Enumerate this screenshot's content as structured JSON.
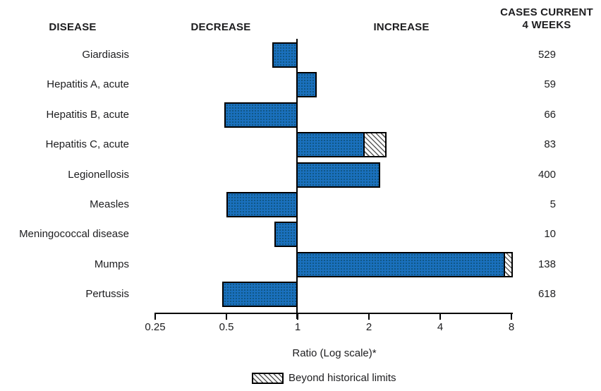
{
  "headers": {
    "disease": "DISEASE",
    "decrease": "DECREASE",
    "increase": "INCREASE",
    "cases_line1": "CASES CURRENT",
    "cases_line2": "4 WEEKS"
  },
  "axis": {
    "label": "Ratio (Log scale)*",
    "tick_labels": [
      "0.25",
      "0.5",
      "1",
      "2",
      "4",
      "8"
    ]
  },
  "legend": {
    "beyond": "Beyond historical limits"
  },
  "colors": {
    "bar_fill": "#1a70bd",
    "bar_border": "#000000",
    "text": "#1d1d1f"
  },
  "chart_data": {
    "type": "bar",
    "orientation": "horizontal",
    "scale": "log2",
    "baseline_ratio": 1,
    "xlabel": "Ratio (Log scale)*",
    "x_ticks": [
      0.25,
      0.5,
      1,
      2,
      4,
      8
    ],
    "xlim": [
      0.25,
      8
    ],
    "columns": [
      "DISEASE",
      "RATIO",
      "CASES CURRENT 4 WEEKS"
    ],
    "rows": [
      {
        "disease": "Giardiasis",
        "cases": 529,
        "ratio": 0.78,
        "direction": "decrease",
        "beyond_historical_limits": false,
        "beyond_start_ratio": null
      },
      {
        "disease": "Hepatitis A, acute",
        "cases": 59,
        "ratio": 1.2,
        "direction": "increase",
        "beyond_historical_limits": false,
        "beyond_start_ratio": null
      },
      {
        "disease": "Hepatitis B, acute",
        "cases": 66,
        "ratio": 0.49,
        "direction": "decrease",
        "beyond_historical_limits": false,
        "beyond_start_ratio": null
      },
      {
        "disease": "Hepatitis C, acute",
        "cases": 83,
        "ratio": 2.38,
        "direction": "increase",
        "beyond_historical_limits": true,
        "beyond_start_ratio": 1.92
      },
      {
        "disease": "Legionellosis",
        "cases": 400,
        "ratio": 2.23,
        "direction": "increase",
        "beyond_historical_limits": false,
        "beyond_start_ratio": null
      },
      {
        "disease": "Measles",
        "cases": 5,
        "ratio": 0.5,
        "direction": "decrease",
        "beyond_historical_limits": false,
        "beyond_start_ratio": null
      },
      {
        "disease": "Meningococcal disease",
        "cases": 10,
        "ratio": 0.8,
        "direction": "decrease",
        "beyond_historical_limits": false,
        "beyond_start_ratio": null
      },
      {
        "disease": "Mumps",
        "cases": 138,
        "ratio": 8.1,
        "direction": "increase",
        "beyond_historical_limits": true,
        "beyond_start_ratio": 7.5
      },
      {
        "disease": "Pertussis",
        "cases": 618,
        "ratio": 0.48,
        "direction": "decrease",
        "beyond_historical_limits": false,
        "beyond_start_ratio": null
      }
    ]
  }
}
